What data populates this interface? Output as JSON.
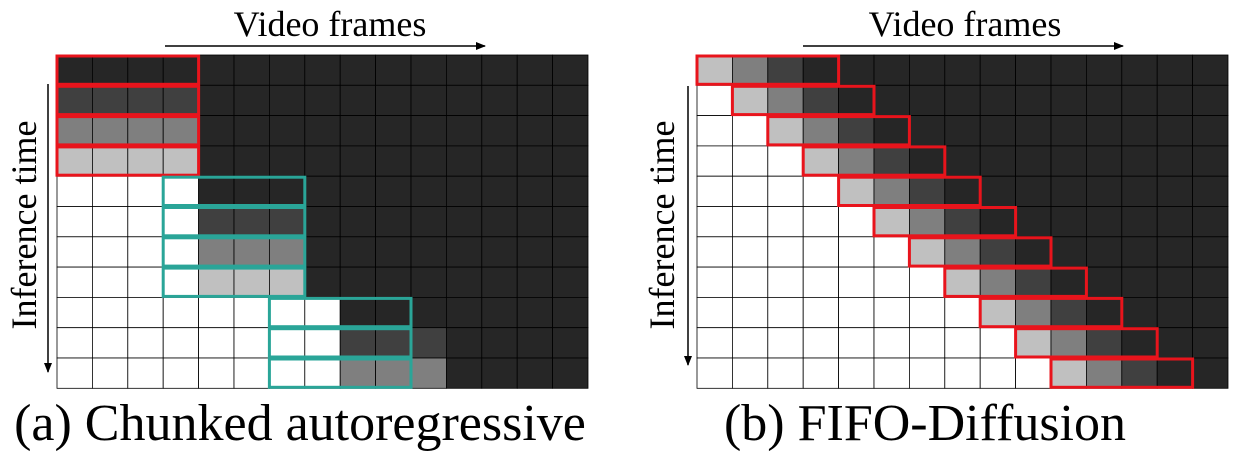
{
  "panels": [
    {
      "id": "a",
      "caption": "(a) Chunked autoregressive",
      "x_axis_label": "Video frames",
      "y_axis_label": "Inference time",
      "grid": {
        "columns": 15,
        "rows": 11
      },
      "shade_levels": {
        "0": "#ffffff",
        "1": "#c0c0c0",
        "2": "#7f7f7f",
        "3": "#404040",
        "4": "#262626"
      },
      "cell_levels": [
        [
          4,
          4,
          4,
          4,
          4,
          4,
          4,
          4,
          4,
          4,
          4,
          4,
          4,
          4,
          4
        ],
        [
          3,
          3,
          3,
          3,
          4,
          4,
          4,
          4,
          4,
          4,
          4,
          4,
          4,
          4,
          4
        ],
        [
          2,
          2,
          2,
          2,
          4,
          4,
          4,
          4,
          4,
          4,
          4,
          4,
          4,
          4,
          4
        ],
        [
          1,
          1,
          1,
          1,
          4,
          4,
          4,
          4,
          4,
          4,
          4,
          4,
          4,
          4,
          4
        ],
        [
          0,
          0,
          0,
          0,
          4,
          4,
          4,
          4,
          4,
          4,
          4,
          4,
          4,
          4,
          4
        ],
        [
          0,
          0,
          0,
          0,
          3,
          3,
          3,
          4,
          4,
          4,
          4,
          4,
          4,
          4,
          4
        ],
        [
          0,
          0,
          0,
          0,
          2,
          2,
          2,
          4,
          4,
          4,
          4,
          4,
          4,
          4,
          4
        ],
        [
          0,
          0,
          0,
          0,
          1,
          1,
          1,
          4,
          4,
          4,
          4,
          4,
          4,
          4,
          4
        ],
        [
          0,
          0,
          0,
          0,
          0,
          0,
          0,
          0,
          4,
          4,
          4,
          4,
          4,
          4,
          4
        ],
        [
          0,
          0,
          0,
          0,
          0,
          0,
          0,
          0,
          3,
          3,
          3,
          4,
          4,
          4,
          4
        ],
        [
          0,
          0,
          0,
          0,
          0,
          0,
          0,
          0,
          2,
          2,
          2,
          4,
          4,
          4,
          4
        ]
      ],
      "windows": [
        {
          "row": 0,
          "col_start": 0,
          "col_end": 3,
          "color": "#e8141c"
        },
        {
          "row": 1,
          "col_start": 0,
          "col_end": 3,
          "color": "#e8141c"
        },
        {
          "row": 2,
          "col_start": 0,
          "col_end": 3,
          "color": "#e8141c"
        },
        {
          "row": 3,
          "col_start": 0,
          "col_end": 3,
          "color": "#e8141c"
        },
        {
          "row": 4,
          "col_start": 3,
          "col_end": 6,
          "color": "#2aa598"
        },
        {
          "row": 5,
          "col_start": 3,
          "col_end": 6,
          "color": "#2aa598"
        },
        {
          "row": 6,
          "col_start": 3,
          "col_end": 6,
          "color": "#2aa598"
        },
        {
          "row": 7,
          "col_start": 3,
          "col_end": 6,
          "color": "#2aa598"
        },
        {
          "row": 8,
          "col_start": 6,
          "col_end": 9,
          "color": "#2aa598"
        },
        {
          "row": 9,
          "col_start": 6,
          "col_end": 9,
          "color": "#2aa598"
        },
        {
          "row": 10,
          "col_start": 6,
          "col_end": 9,
          "color": "#2aa598"
        }
      ]
    },
    {
      "id": "b",
      "caption": "(b) FIFO-Diffusion",
      "x_axis_label": "Video frames",
      "y_axis_label": "Inference time",
      "grid": {
        "columns": 15,
        "rows": 11
      },
      "shade_levels": {
        "0": "#ffffff",
        "1": "#c0c0c0",
        "2": "#7f7f7f",
        "3": "#404040",
        "4": "#262626"
      },
      "cell_levels": [
        [
          1,
          2,
          3,
          4,
          4,
          4,
          4,
          4,
          4,
          4,
          4,
          4,
          4,
          4,
          4
        ],
        [
          0,
          1,
          2,
          3,
          4,
          4,
          4,
          4,
          4,
          4,
          4,
          4,
          4,
          4,
          4
        ],
        [
          0,
          0,
          1,
          2,
          3,
          4,
          4,
          4,
          4,
          4,
          4,
          4,
          4,
          4,
          4
        ],
        [
          0,
          0,
          0,
          1,
          2,
          3,
          4,
          4,
          4,
          4,
          4,
          4,
          4,
          4,
          4
        ],
        [
          0,
          0,
          0,
          0,
          1,
          2,
          3,
          4,
          4,
          4,
          4,
          4,
          4,
          4,
          4
        ],
        [
          0,
          0,
          0,
          0,
          0,
          1,
          2,
          3,
          4,
          4,
          4,
          4,
          4,
          4,
          4
        ],
        [
          0,
          0,
          0,
          0,
          0,
          0,
          1,
          2,
          3,
          4,
          4,
          4,
          4,
          4,
          4
        ],
        [
          0,
          0,
          0,
          0,
          0,
          0,
          0,
          1,
          2,
          3,
          4,
          4,
          4,
          4,
          4
        ],
        [
          0,
          0,
          0,
          0,
          0,
          0,
          0,
          0,
          1,
          2,
          3,
          4,
          4,
          4,
          4
        ],
        [
          0,
          0,
          0,
          0,
          0,
          0,
          0,
          0,
          0,
          1,
          2,
          3,
          4,
          4,
          4
        ],
        [
          0,
          0,
          0,
          0,
          0,
          0,
          0,
          0,
          0,
          0,
          1,
          2,
          3,
          4,
          4
        ]
      ],
      "windows": [
        {
          "row": 0,
          "col_start": 0,
          "col_end": 3,
          "color": "#e8141c"
        },
        {
          "row": 1,
          "col_start": 1,
          "col_end": 4,
          "color": "#e8141c"
        },
        {
          "row": 2,
          "col_start": 2,
          "col_end": 5,
          "color": "#e8141c"
        },
        {
          "row": 3,
          "col_start": 3,
          "col_end": 6,
          "color": "#e8141c"
        },
        {
          "row": 4,
          "col_start": 4,
          "col_end": 7,
          "color": "#e8141c"
        },
        {
          "row": 5,
          "col_start": 5,
          "col_end": 8,
          "color": "#e8141c"
        },
        {
          "row": 6,
          "col_start": 6,
          "col_end": 9,
          "color": "#e8141c"
        },
        {
          "row": 7,
          "col_start": 7,
          "col_end": 10,
          "color": "#e8141c"
        },
        {
          "row": 8,
          "col_start": 8,
          "col_end": 11,
          "color": "#e8141c"
        },
        {
          "row": 9,
          "col_start": 9,
          "col_end": 12,
          "color": "#e8141c"
        },
        {
          "row": 10,
          "col_start": 10,
          "col_end": 13,
          "color": "#e8141c"
        }
      ]
    }
  ]
}
